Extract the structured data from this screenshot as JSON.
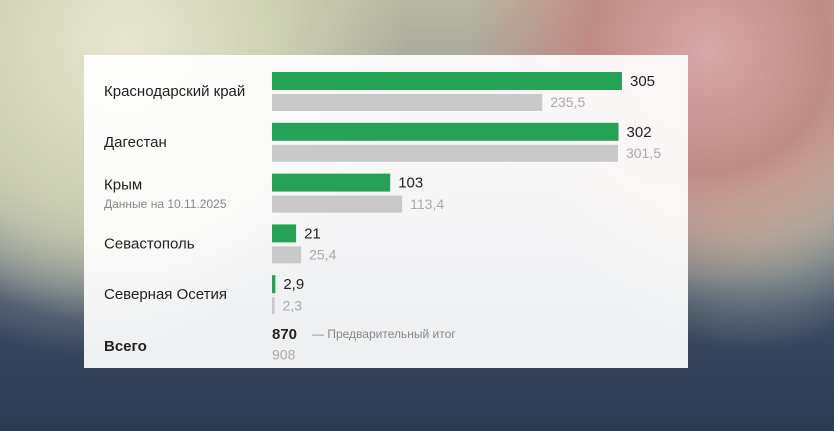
{
  "chart_data": {
    "type": "bar",
    "categories": [
      "Краснодарский край",
      "Дагестан",
      "Крым",
      "Севастополь",
      "Северная Осетия"
    ],
    "category_notes": [
      null,
      null,
      "Данные на 10.11.2025",
      null,
      null
    ],
    "series": [
      {
        "color": "#26a257",
        "values": [
          305,
          302,
          103,
          21,
          2.9
        ],
        "value_labels": [
          "305",
          "302",
          "103",
          "21",
          "2,9"
        ]
      },
      {
        "color": "#c9c9c9",
        "values": [
          235.5,
          301.5,
          113.4,
          25.4,
          2.3
        ],
        "value_labels": [
          "235,5",
          "301,5",
          "113,4",
          "25,4",
          "2,3"
        ]
      }
    ],
    "total": {
      "label": "Всего",
      "values": [
        870,
        908
      ],
      "note": "— Предварительный итог"
    }
  }
}
